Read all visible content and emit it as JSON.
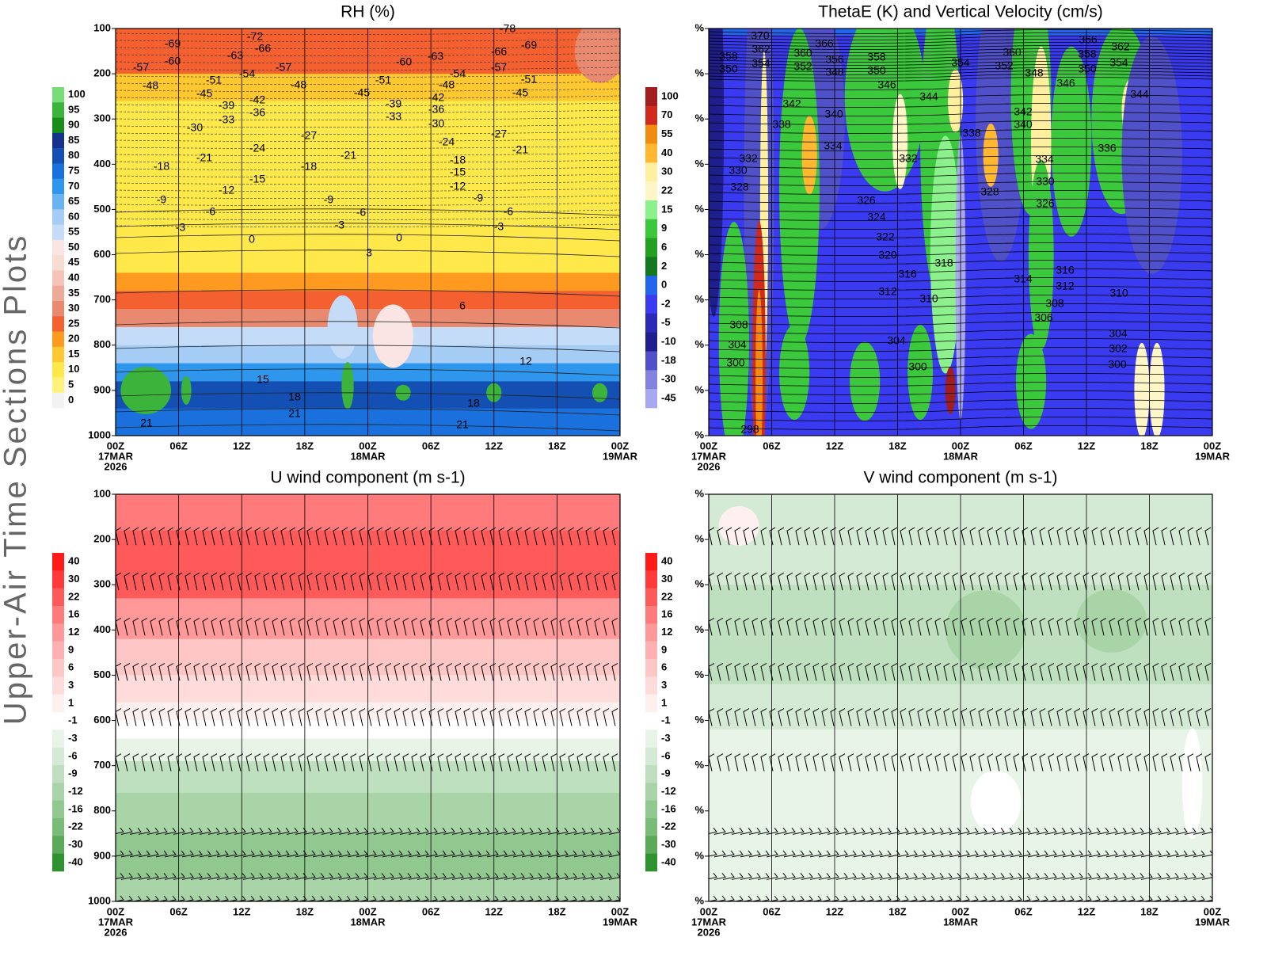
{
  "side_title": "Upper-Air Time Sections Plots",
  "chart_data": [
    {
      "type": "contour",
      "title": "RH (%)",
      "ylim": [
        100,
        1000
      ],
      "y_reversed": true,
      "yticks": [
        100,
        200,
        300,
        400,
        500,
        600,
        700,
        800,
        900,
        1000
      ],
      "x_labels": [
        [
          "00Z",
          "17MAR",
          "2026"
        ],
        [
          "06Z"
        ],
        [
          "12Z"
        ],
        [
          "18Z"
        ],
        [
          "00Z",
          "18MAR"
        ],
        [
          "06Z"
        ],
        [
          "12Z"
        ],
        [
          "18Z"
        ],
        [
          "00Z",
          "19MAR"
        ]
      ],
      "colorbar": {
        "labels": [
          100,
          95,
          90,
          85,
          80,
          75,
          70,
          65,
          60,
          55,
          50,
          45,
          40,
          35,
          30,
          25,
          20,
          15,
          10,
          5,
          0
        ],
        "colors": [
          "#78dc78",
          "#3cb43c",
          "#1a8c1a",
          "#14328c",
          "#1450b4",
          "#1a70dc",
          "#2e96ec",
          "#68b4f0",
          "#a4ccf4",
          "#c4dcf8",
          "#fbe4e4",
          "#f8dcd2",
          "#f4c4b6",
          "#eeaa98",
          "#e98a70",
          "#f46030",
          "#ff9a20",
          "#ffc830",
          "#ffe84a",
          "#fff27a",
          "#f2f2f2"
        ]
      },
      "contour_labels": [
        -78,
        -69,
        -57,
        -60,
        -48,
        -72,
        -66,
        -63,
        -54,
        -51,
        -57,
        -48,
        -45,
        -39,
        -42,
        -33,
        -36,
        -30,
        -45,
        -51,
        -60,
        -63,
        -54,
        -48,
        -42,
        -36,
        -30,
        -39,
        -33,
        -66,
        -69,
        -57,
        -51,
        -45,
        -27,
        -24,
        -21,
        -18,
        -21,
        -18,
        -24,
        -27,
        -21,
        -18,
        -15,
        -12,
        -15,
        -12,
        -9,
        -6,
        -3,
        -9,
        -6,
        -3,
        -9,
        -6,
        -3,
        0,
        0,
        3,
        6,
        12,
        15,
        18,
        18,
        21,
        21,
        21
      ]
    },
    {
      "type": "contour",
      "title": "ThetaE (K) and Vertical Velocity (cm/s)",
      "ylim": [
        100,
        1000
      ],
      "y_reversed": true,
      "yticks": [
        {
          "value": 100,
          "label": "%"
        },
        {
          "value": 200,
          "label": "%"
        },
        {
          "value": 300,
          "label": "%"
        },
        {
          "value": 400,
          "label": "%"
        },
        {
          "value": 500,
          "label": "%"
        },
        {
          "value": 600,
          "label": "%"
        },
        {
          "value": 700,
          "label": "%"
        },
        {
          "value": 800,
          "label": "%"
        },
        {
          "value": 900,
          "label": "%"
        },
        {
          "value": 1000,
          "label": "%"
        }
      ],
      "x_labels": [
        [
          "00Z",
          "17MAR",
          "2026"
        ],
        [
          "06Z"
        ],
        [
          "12Z"
        ],
        [
          "18Z"
        ],
        [
          "00Z",
          "18MAR"
        ],
        [
          "06Z"
        ],
        [
          "12Z"
        ],
        [
          "18Z"
        ],
        [
          "00Z",
          "19MAR"
        ]
      ],
      "colorbar": {
        "labels": [
          100,
          70,
          55,
          40,
          30,
          22,
          15,
          9,
          6,
          2,
          0,
          -2,
          -5,
          -10,
          -18,
          -30,
          -45
        ],
        "colors": [
          "#a01e1e",
          "#d02a1e",
          "#f08c10",
          "#ffb830",
          "#fff0a0",
          "#fff6c8",
          "#8cf08c",
          "#3cc83c",
          "#22a022",
          "#14781e",
          "#2266ee",
          "#3a3af0",
          "#2a2ab4",
          "#1e1e8c",
          "#5050c8",
          "#8484e0",
          "#a8a8f0"
        ]
      },
      "contour_labels": [
        370,
        362,
        354,
        358,
        350,
        366,
        360,
        352,
        356,
        348,
        358,
        350,
        346,
        354,
        360,
        352,
        348,
        346,
        366,
        358,
        350,
        362,
        354,
        344,
        342,
        338,
        340,
        334,
        344,
        342,
        340,
        338,
        336,
        334,
        332,
        330,
        328,
        332,
        330,
        328,
        326,
        326,
        324,
        322,
        320,
        318,
        316,
        316,
        314,
        312,
        312,
        310,
        310,
        308,
        306,
        308,
        304,
        304,
        304,
        302,
        300,
        300,
        300,
        298
      ]
    },
    {
      "type": "contour",
      "title": "U wind component (m s-1)",
      "ylim": [
        100,
        1000
      ],
      "y_reversed": true,
      "yticks": [
        100,
        200,
        300,
        400,
        500,
        600,
        700,
        800,
        900,
        1000
      ],
      "x_labels": [
        [
          "00Z",
          "17MAR",
          "2026"
        ],
        [
          "06Z"
        ],
        [
          "12Z"
        ],
        [
          "18Z"
        ],
        [
          "00Z",
          "18MAR"
        ],
        [
          "06Z"
        ],
        [
          "12Z"
        ],
        [
          "18Z"
        ],
        [
          "00Z",
          "19MAR"
        ]
      ],
      "colorbar": {
        "labels": [
          40,
          30,
          22,
          16,
          12,
          9,
          6,
          3,
          1,
          -1,
          -3,
          -6,
          -9,
          -12,
          -16,
          -22,
          -30,
          -40
        ],
        "colors": [
          "#ff1a1a",
          "#ff3a3a",
          "#ff5a5a",
          "#ff7a7a",
          "#ff9898",
          "#ffb0b0",
          "#ffc6c6",
          "#ffdcdc",
          "#fff0f0",
          "#ffffff",
          "#e8f4e8",
          "#d4ead4",
          "#bfe0bf",
          "#a8d4a8",
          "#90c890",
          "#78bc78",
          "#5aaa5a",
          "#2e922e"
        ]
      }
    },
    {
      "type": "contour",
      "title": "V wind component (m s-1)",
      "ylim": [
        100,
        1000
      ],
      "y_reversed": true,
      "yticks": [
        {
          "value": 100,
          "label": "%"
        },
        {
          "value": 200,
          "label": "%"
        },
        {
          "value": 300,
          "label": "%"
        },
        {
          "value": 400,
          "label": "%"
        },
        {
          "value": 500,
          "label": "%"
        },
        {
          "value": 600,
          "label": "%"
        },
        {
          "value": 700,
          "label": "%"
        },
        {
          "value": 800,
          "label": "%"
        },
        {
          "value": 900,
          "label": "%"
        },
        {
          "value": 1000,
          "label": "%"
        }
      ],
      "x_labels": [
        [
          "00Z",
          "17MAR",
          "2026"
        ],
        [
          "06Z"
        ],
        [
          "12Z"
        ],
        [
          "18Z"
        ],
        [
          "00Z",
          "18MAR"
        ],
        [
          "06Z"
        ],
        [
          "12Z"
        ],
        [
          "18Z"
        ],
        [
          "00Z",
          "19MAR"
        ]
      ],
      "colorbar": {
        "labels": [
          40,
          30,
          22,
          16,
          12,
          9,
          6,
          3,
          1,
          -1,
          -3,
          -6,
          -9,
          -12,
          -16,
          -22,
          -30,
          -40
        ],
        "colors": [
          "#ff1a1a",
          "#ff3a3a",
          "#ff5a5a",
          "#ff7a7a",
          "#ff9898",
          "#ffb0b0",
          "#ffc6c6",
          "#ffdcdc",
          "#fff0f0",
          "#ffffff",
          "#e8f4e8",
          "#d4ead4",
          "#bfe0bf",
          "#a8d4a8",
          "#90c890",
          "#78bc78",
          "#5aaa5a",
          "#2e922e"
        ]
      }
    }
  ]
}
